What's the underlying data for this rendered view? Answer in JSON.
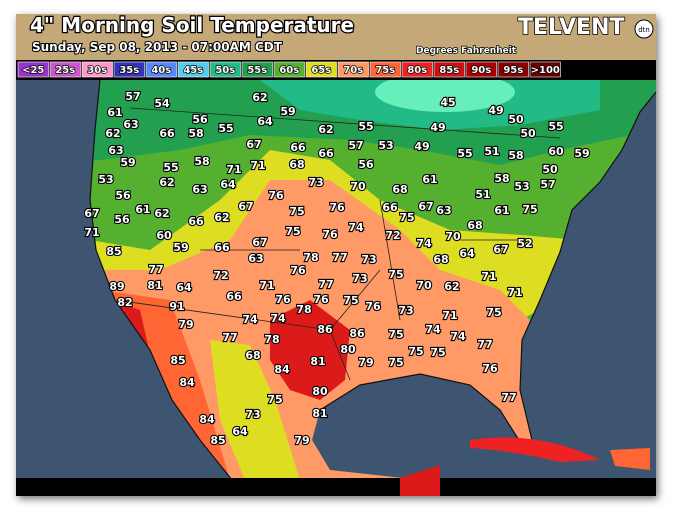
{
  "header": {
    "title": "4\" Morning Soil Temperature",
    "subtitle": "Sunday, Sep 08, 2013 - 07:00AM CDT",
    "brand": "TELVENT",
    "brand_badge": "dtn",
    "units": "Degrees Fahrenheit"
  },
  "legend": [
    {
      "label": "<25",
      "color": "#9933cc"
    },
    {
      "label": "25s",
      "color": "#cc55cc"
    },
    {
      "label": "30s",
      "color": "#ff99cc"
    },
    {
      "label": "35s",
      "color": "#3333bb"
    },
    {
      "label": "40s",
      "color": "#5588ff"
    },
    {
      "label": "45s",
      "color": "#55ccee"
    },
    {
      "label": "50s",
      "color": "#22bb88"
    },
    {
      "label": "55s",
      "color": "#22a050"
    },
    {
      "label": "60s",
      "color": "#55b030"
    },
    {
      "label": "65s",
      "color": "#dddd22"
    },
    {
      "label": "70s",
      "color": "#ff9966"
    },
    {
      "label": "75s",
      "color": "#ff6633"
    },
    {
      "label": "80s",
      "color": "#ee2222"
    },
    {
      "label": "85s",
      "color": "#cc1111"
    },
    {
      "label": "90s",
      "color": "#aa0000"
    },
    {
      "label": "95s",
      "color": "#880000"
    },
    {
      "label": ">100",
      "color": "#660000"
    }
  ],
  "stations": [
    57,
    54,
    62,
    45,
    49,
    61,
    63,
    56,
    55,
    64,
    59,
    62,
    55,
    49,
    50,
    55,
    62,
    66,
    58,
    50,
    63,
    67,
    66,
    66,
    57,
    53,
    49,
    55,
    51,
    58,
    60,
    59,
    59,
    55,
    58,
    71,
    71,
    68,
    56,
    50,
    53,
    62,
    64,
    73,
    70,
    61,
    58,
    57,
    56,
    63,
    76,
    68,
    51,
    53,
    61,
    62,
    67,
    75,
    76,
    66,
    75,
    67,
    63,
    61,
    75,
    67,
    56,
    66,
    62,
    74,
    68,
    71,
    60,
    75,
    76,
    72,
    74,
    70,
    52,
    59,
    66,
    67,
    78,
    77,
    73,
    68,
    64,
    67,
    85,
    63,
    76,
    73,
    75,
    71,
    77,
    72,
    71,
    77,
    70,
    62,
    89,
    81,
    64,
    71,
    66,
    76,
    76,
    75,
    76,
    82,
    91,
    74,
    78,
    73,
    71,
    75,
    79,
    74,
    78,
    86,
    86,
    75,
    74,
    74,
    77,
    80,
    77,
    85,
    68,
    81,
    79,
    75,
    75,
    75,
    84,
    76,
    84,
    80,
    75,
    77,
    73,
    81,
    84,
    64,
    85,
    79
  ]
}
